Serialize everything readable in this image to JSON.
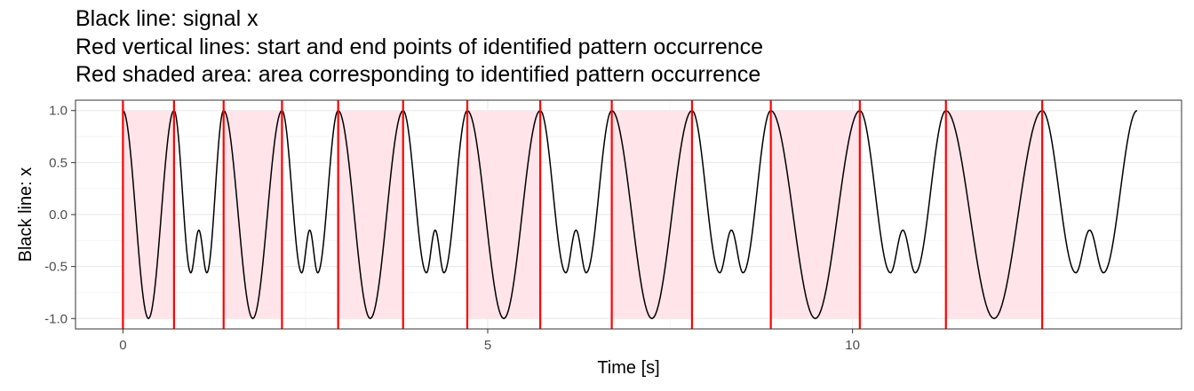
{
  "titles": [
    "Black line: signal x",
    "Red vertical lines: start and end points of identified pattern occurrence",
    "Red shaded area: area corresponding to identified pattern occurrence"
  ],
  "chart_data": {
    "type": "line",
    "xlabel": "Time [s]",
    "ylabel": "Black line: x",
    "xlim": [
      -0.65,
      14.51
    ],
    "ylim": [
      -1.1,
      1.1
    ],
    "x_ticks": [
      0,
      5,
      10
    ],
    "x_tick_labels": [
      "0",
      "5",
      "10"
    ],
    "y_ticks": [
      1.0,
      0.5,
      0.0,
      -0.5,
      -1.0
    ],
    "y_tick_labels": [
      "1.0",
      "0.5",
      "0.0",
      "-0.5",
      "-1.0"
    ],
    "grid": true,
    "signal": {
      "description_series": "signal x",
      "color": "#000000",
      "x_start": 0,
      "x_end": 13.9,
      "points": [
        [
          0.0,
          1.0
        ],
        [
          0.35,
          -1.0
        ],
        [
          0.7,
          1.0
        ],
        [
          0.93,
          -0.56
        ],
        [
          1.04,
          -0.15
        ],
        [
          1.15,
          -0.56
        ],
        [
          1.38,
          1.0
        ],
        [
          1.78,
          -1.0
        ],
        [
          2.18,
          1.0
        ],
        [
          2.45,
          -0.56
        ],
        [
          2.56,
          -0.15
        ],
        [
          2.67,
          -0.56
        ],
        [
          2.95,
          1.0
        ],
        [
          3.39,
          -1.0
        ],
        [
          3.84,
          1.0
        ],
        [
          4.16,
          -0.56
        ],
        [
          4.28,
          -0.15
        ],
        [
          4.4,
          -0.56
        ],
        [
          4.72,
          1.0
        ],
        [
          5.22,
          -1.0
        ],
        [
          5.72,
          1.0
        ],
        [
          6.07,
          -0.56
        ],
        [
          6.21,
          -0.15
        ],
        [
          6.35,
          -0.56
        ],
        [
          6.7,
          1.0
        ],
        [
          7.25,
          -1.0
        ],
        [
          7.8,
          1.0
        ],
        [
          8.18,
          -0.56
        ],
        [
          8.34,
          -0.15
        ],
        [
          8.5,
          -0.56
        ],
        [
          8.88,
          1.0
        ],
        [
          9.49,
          -1.0
        ],
        [
          10.1,
          1.0
        ],
        [
          10.52,
          -0.56
        ],
        [
          10.69,
          -0.15
        ],
        [
          10.86,
          -0.56
        ],
        [
          11.28,
          1.0
        ],
        [
          11.94,
          -1.0
        ],
        [
          12.6,
          1.0
        ],
        [
          13.06,
          -0.56
        ],
        [
          13.25,
          -0.15
        ],
        [
          13.44,
          -0.56
        ],
        [
          13.9,
          1.0
        ]
      ]
    },
    "pattern_occurrences": [
      {
        "start": 0.0,
        "end": 0.7
      },
      {
        "start": 1.38,
        "end": 2.18
      },
      {
        "start": 2.95,
        "end": 3.84
      },
      {
        "start": 4.72,
        "end": 5.72
      },
      {
        "start": 6.7,
        "end": 7.8
      },
      {
        "start": 8.88,
        "end": 10.1
      },
      {
        "start": 11.28,
        "end": 12.6
      }
    ],
    "colors": {
      "line": "#000000",
      "boundary": "#ff0000",
      "shade": "#ffe4ea",
      "grid_major": "#ebebeb",
      "grid_minor": "#f5f5f5",
      "panel_border": "#333333",
      "tick_label": "#4d4d4d"
    }
  }
}
